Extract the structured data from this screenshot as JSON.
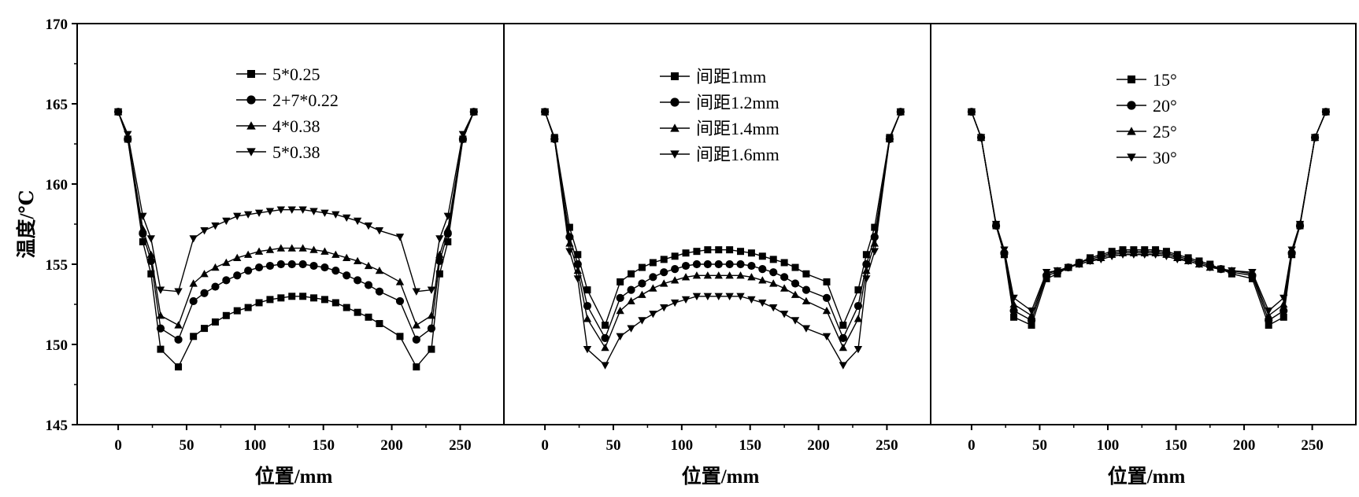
{
  "chart_data": [
    {
      "type": "line",
      "ylabel": "温度/℃",
      "xlabel": "位置/mm",
      "xlim": [
        -30,
        282
      ],
      "ylim": [
        145,
        170
      ],
      "xticks": [
        "0",
        "50",
        "100",
        "150",
        "200",
        "250"
      ],
      "yticks": [
        "145",
        "150",
        "155",
        "160",
        "165",
        "170"
      ],
      "legend_position": "top-center",
      "x": [
        0,
        7,
        18,
        24,
        31,
        44,
        55,
        63,
        71,
        79,
        87,
        95,
        103,
        111,
        119,
        127,
        135,
        143,
        151,
        159,
        167,
        175,
        183,
        191,
        206,
        218,
        229,
        235,
        241,
        252,
        260
      ],
      "series": [
        {
          "name": "5*0.25",
          "marker": "square",
          "values": [
            164.5,
            162.8,
            156.4,
            154.4,
            149.7,
            148.6,
            150.5,
            151.0,
            151.4,
            151.8,
            152.1,
            152.3,
            152.6,
            152.8,
            152.9,
            153.0,
            153.0,
            152.9,
            152.8,
            152.6,
            152.3,
            152.0,
            151.7,
            151.3,
            150.5,
            148.6,
            149.7,
            154.4,
            156.4,
            162.8,
            164.5
          ]
        },
        {
          "name": "2+7*0.22",
          "marker": "circle",
          "values": [
            164.5,
            162.8,
            156.9,
            155.2,
            151.0,
            150.3,
            152.7,
            153.2,
            153.6,
            154.0,
            154.3,
            154.6,
            154.8,
            154.9,
            155.0,
            155.0,
            155.0,
            154.9,
            154.8,
            154.6,
            154.3,
            154.0,
            153.7,
            153.3,
            152.7,
            150.3,
            151.0,
            155.2,
            156.9,
            162.8,
            164.5
          ]
        },
        {
          "name": "4*0.38",
          "marker": "triangle-up",
          "values": [
            164.5,
            162.9,
            157.2,
            155.6,
            151.8,
            151.2,
            153.8,
            154.4,
            154.8,
            155.1,
            155.4,
            155.6,
            155.8,
            155.9,
            156.0,
            156.0,
            156.0,
            155.9,
            155.8,
            155.6,
            155.4,
            155.2,
            154.9,
            154.6,
            153.9,
            151.2,
            151.8,
            155.6,
            157.2,
            162.9,
            164.5
          ]
        },
        {
          "name": "5*0.38",
          "marker": "triangle-down",
          "values": [
            164.5,
            163.1,
            158.0,
            156.6,
            153.4,
            153.3,
            156.6,
            157.1,
            157.4,
            157.7,
            158.0,
            158.1,
            158.2,
            158.3,
            158.4,
            158.4,
            158.4,
            158.3,
            158.2,
            158.1,
            157.9,
            157.7,
            157.4,
            157.1,
            156.7,
            153.3,
            153.4,
            156.6,
            158.0,
            163.1,
            164.5
          ]
        }
      ]
    },
    {
      "type": "line",
      "xlabel": "位置/mm",
      "xlim": [
        -30,
        282
      ],
      "ylim": [
        145,
        170
      ],
      "xticks": [
        "0",
        "50",
        "100",
        "150",
        "200",
        "250"
      ],
      "legend_position": "top-center",
      "x": [
        0,
        7,
        18,
        24,
        31,
        44,
        55,
        63,
        71,
        79,
        87,
        95,
        103,
        111,
        119,
        127,
        135,
        143,
        151,
        159,
        167,
        175,
        183,
        191,
        206,
        218,
        229,
        235,
        241,
        252,
        260
      ],
      "series": [
        {
          "name": "间距1mm",
          "marker": "square",
          "values": [
            164.5,
            162.9,
            157.3,
            155.6,
            153.4,
            151.2,
            153.9,
            154.4,
            154.8,
            155.1,
            155.3,
            155.5,
            155.7,
            155.8,
            155.9,
            155.9,
            155.9,
            155.8,
            155.7,
            155.5,
            155.3,
            155.1,
            154.8,
            154.4,
            153.9,
            151.2,
            153.4,
            155.6,
            157.3,
            162.9,
            164.5
          ]
        },
        {
          "name": "间距1.2mm",
          "marker": "circle",
          "values": [
            164.5,
            162.8,
            156.7,
            155.0,
            152.4,
            150.4,
            152.9,
            153.4,
            153.8,
            154.2,
            154.5,
            154.7,
            154.9,
            155.0,
            155.0,
            155.0,
            155.0,
            155.0,
            154.9,
            154.7,
            154.5,
            154.2,
            153.8,
            153.4,
            152.9,
            150.4,
            152.4,
            155.0,
            156.7,
            162.8,
            164.5
          ]
        },
        {
          "name": "间距1.4mm",
          "marker": "triangle-up",
          "values": [
            164.5,
            162.8,
            156.3,
            154.6,
            151.6,
            149.8,
            152.1,
            152.7,
            153.1,
            153.5,
            153.8,
            154.0,
            154.2,
            154.3,
            154.3,
            154.3,
            154.3,
            154.3,
            154.2,
            154.0,
            153.8,
            153.5,
            153.1,
            152.7,
            152.1,
            149.8,
            151.6,
            154.6,
            156.3,
            162.8,
            164.5
          ]
        },
        {
          "name": "间距1.6mm",
          "marker": "triangle-down",
          "values": [
            164.5,
            162.8,
            155.8,
            154.1,
            149.7,
            148.7,
            150.5,
            151.0,
            151.5,
            151.9,
            152.3,
            152.6,
            152.8,
            153.0,
            153.0,
            153.0,
            153.0,
            153.0,
            152.8,
            152.6,
            152.3,
            151.9,
            151.5,
            151.0,
            150.5,
            148.7,
            149.7,
            154.1,
            155.8,
            162.8,
            164.5
          ]
        }
      ]
    },
    {
      "type": "line",
      "xlabel": "位置/mm",
      "xlim": [
        -30,
        282
      ],
      "ylim": [
        145,
        170
      ],
      "xticks": [
        "0",
        "50",
        "100",
        "150",
        "200",
        "250"
      ],
      "legend_position": "top-center",
      "x": [
        0,
        7,
        18,
        24,
        31,
        44,
        55,
        63,
        71,
        79,
        87,
        95,
        103,
        111,
        119,
        127,
        135,
        143,
        151,
        159,
        167,
        175,
        183,
        191,
        206,
        218,
        229,
        235,
        241,
        252,
        260
      ],
      "series": [
        {
          "name": "15°",
          "marker": "square",
          "values": [
            164.5,
            162.9,
            157.4,
            155.6,
            151.7,
            151.2,
            154.1,
            154.4,
            154.8,
            155.1,
            155.4,
            155.6,
            155.8,
            155.9,
            155.9,
            155.9,
            155.9,
            155.8,
            155.6,
            155.4,
            155.2,
            155.0,
            154.7,
            154.4,
            154.1,
            151.2,
            151.7,
            155.6,
            157.4,
            162.9,
            164.5
          ]
        },
        {
          "name": "20°",
          "marker": "circle",
          "values": [
            164.5,
            162.9,
            157.4,
            155.7,
            152.1,
            151.5,
            154.3,
            154.5,
            154.8,
            155.1,
            155.3,
            155.5,
            155.7,
            155.8,
            155.8,
            155.8,
            155.8,
            155.7,
            155.5,
            155.3,
            155.1,
            154.9,
            154.7,
            154.5,
            154.3,
            151.5,
            152.1,
            155.7,
            157.4,
            162.9,
            164.5
          ]
        },
        {
          "name": "25°",
          "marker": "triangle-up",
          "values": [
            164.5,
            162.9,
            157.5,
            155.8,
            152.5,
            151.8,
            154.4,
            154.6,
            154.8,
            155.0,
            155.2,
            155.4,
            155.6,
            155.7,
            155.7,
            155.7,
            155.7,
            155.6,
            155.4,
            155.2,
            155.0,
            154.8,
            154.7,
            154.6,
            154.4,
            151.8,
            152.5,
            155.8,
            157.5,
            162.9,
            164.5
          ]
        },
        {
          "name": "30°",
          "marker": "triangle-down",
          "values": [
            164.5,
            162.9,
            157.5,
            155.9,
            152.9,
            152.1,
            154.5,
            154.6,
            154.8,
            155.0,
            155.2,
            155.3,
            155.5,
            155.6,
            155.6,
            155.6,
            155.6,
            155.5,
            155.3,
            155.2,
            155.0,
            154.8,
            154.7,
            154.6,
            154.5,
            152.1,
            152.9,
            155.9,
            157.5,
            162.9,
            164.5
          ]
        }
      ]
    }
  ]
}
